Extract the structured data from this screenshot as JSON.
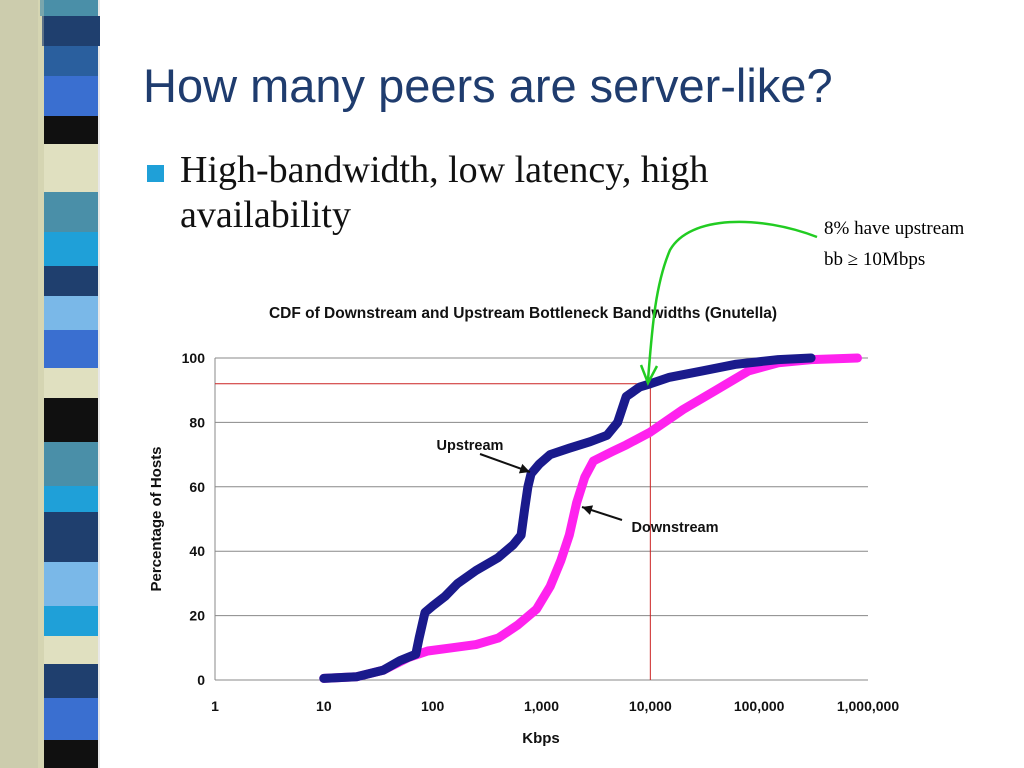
{
  "slide": {
    "title": "How many peers are server-like?",
    "bullet": "High-bandwidth, low latency, high availability",
    "annotation_line1": "8% have upstream",
    "annotation_line2": "bb ≥ 10Mbps",
    "bullet_color": "#1fa0d8",
    "annotation_arrow_color": "#22cc22"
  },
  "chart_data": {
    "type": "line",
    "title": "CDF of Downstream and Upstream Bottleneck Bandwidths (Gnutella)",
    "xlabel": "Kbps",
    "ylabel": "Percentage of Hosts",
    "x_scale": "log",
    "xlim": [
      1,
      1000000
    ],
    "ylim": [
      0,
      100
    ],
    "x_ticks": [
      1,
      10,
      100,
      1000,
      10000,
      100000,
      1000000
    ],
    "x_tick_labels": [
      "1",
      "10",
      "100",
      "1,000",
      "10,000",
      "100,000",
      "1,000,000"
    ],
    "y_ticks": [
      0,
      20,
      40,
      60,
      80,
      100
    ],
    "y_tick_labels": [
      "0",
      "20",
      "40",
      "60",
      "80",
      "100"
    ],
    "grid": "horizontal",
    "reference_lines": {
      "x": 10000,
      "y": 92
    },
    "series": [
      {
        "name": "Upstream",
        "color": "#1a1a8c",
        "points": [
          [
            10,
            0.5
          ],
          [
            20,
            1
          ],
          [
            35,
            3
          ],
          [
            50,
            6
          ],
          [
            70,
            8
          ],
          [
            75,
            13
          ],
          [
            85,
            21
          ],
          [
            100,
            23
          ],
          [
            130,
            26
          ],
          [
            170,
            30
          ],
          [
            250,
            34
          ],
          [
            400,
            38
          ],
          [
            550,
            42
          ],
          [
            650,
            45
          ],
          [
            700,
            53
          ],
          [
            750,
            60
          ],
          [
            800,
            64
          ],
          [
            950,
            67
          ],
          [
            1200,
            70
          ],
          [
            1800,
            72
          ],
          [
            2800,
            74
          ],
          [
            4000,
            76
          ],
          [
            5000,
            80
          ],
          [
            6000,
            88
          ],
          [
            8000,
            91
          ],
          [
            10000,
            92
          ],
          [
            15000,
            94
          ],
          [
            30000,
            96
          ],
          [
            60000,
            98
          ],
          [
            150000,
            99.5
          ],
          [
            300000,
            100
          ]
        ]
      },
      {
        "name": "Downstream",
        "color": "#ff22ee",
        "points": [
          [
            10,
            0.5
          ],
          [
            20,
            1
          ],
          [
            35,
            3
          ],
          [
            60,
            7
          ],
          [
            90,
            9
          ],
          [
            150,
            10
          ],
          [
            250,
            11
          ],
          [
            400,
            13
          ],
          [
            600,
            17
          ],
          [
            900,
            22
          ],
          [
            1200,
            29
          ],
          [
            1500,
            37
          ],
          [
            1800,
            45
          ],
          [
            2100,
            55
          ],
          [
            2500,
            63
          ],
          [
            3000,
            68
          ],
          [
            4500,
            71
          ],
          [
            6000,
            73
          ],
          [
            10000,
            77
          ],
          [
            20000,
            84
          ],
          [
            40000,
            90
          ],
          [
            80000,
            96
          ],
          [
            150000,
            98.5
          ],
          [
            300000,
            99.5
          ],
          [
            800000,
            100
          ]
        ]
      }
    ],
    "annotations": [
      {
        "text": "Upstream",
        "target": [
          700,
          64
        ]
      },
      {
        "text": "Downstream",
        "target": [
          1900,
          52
        ]
      }
    ]
  }
}
